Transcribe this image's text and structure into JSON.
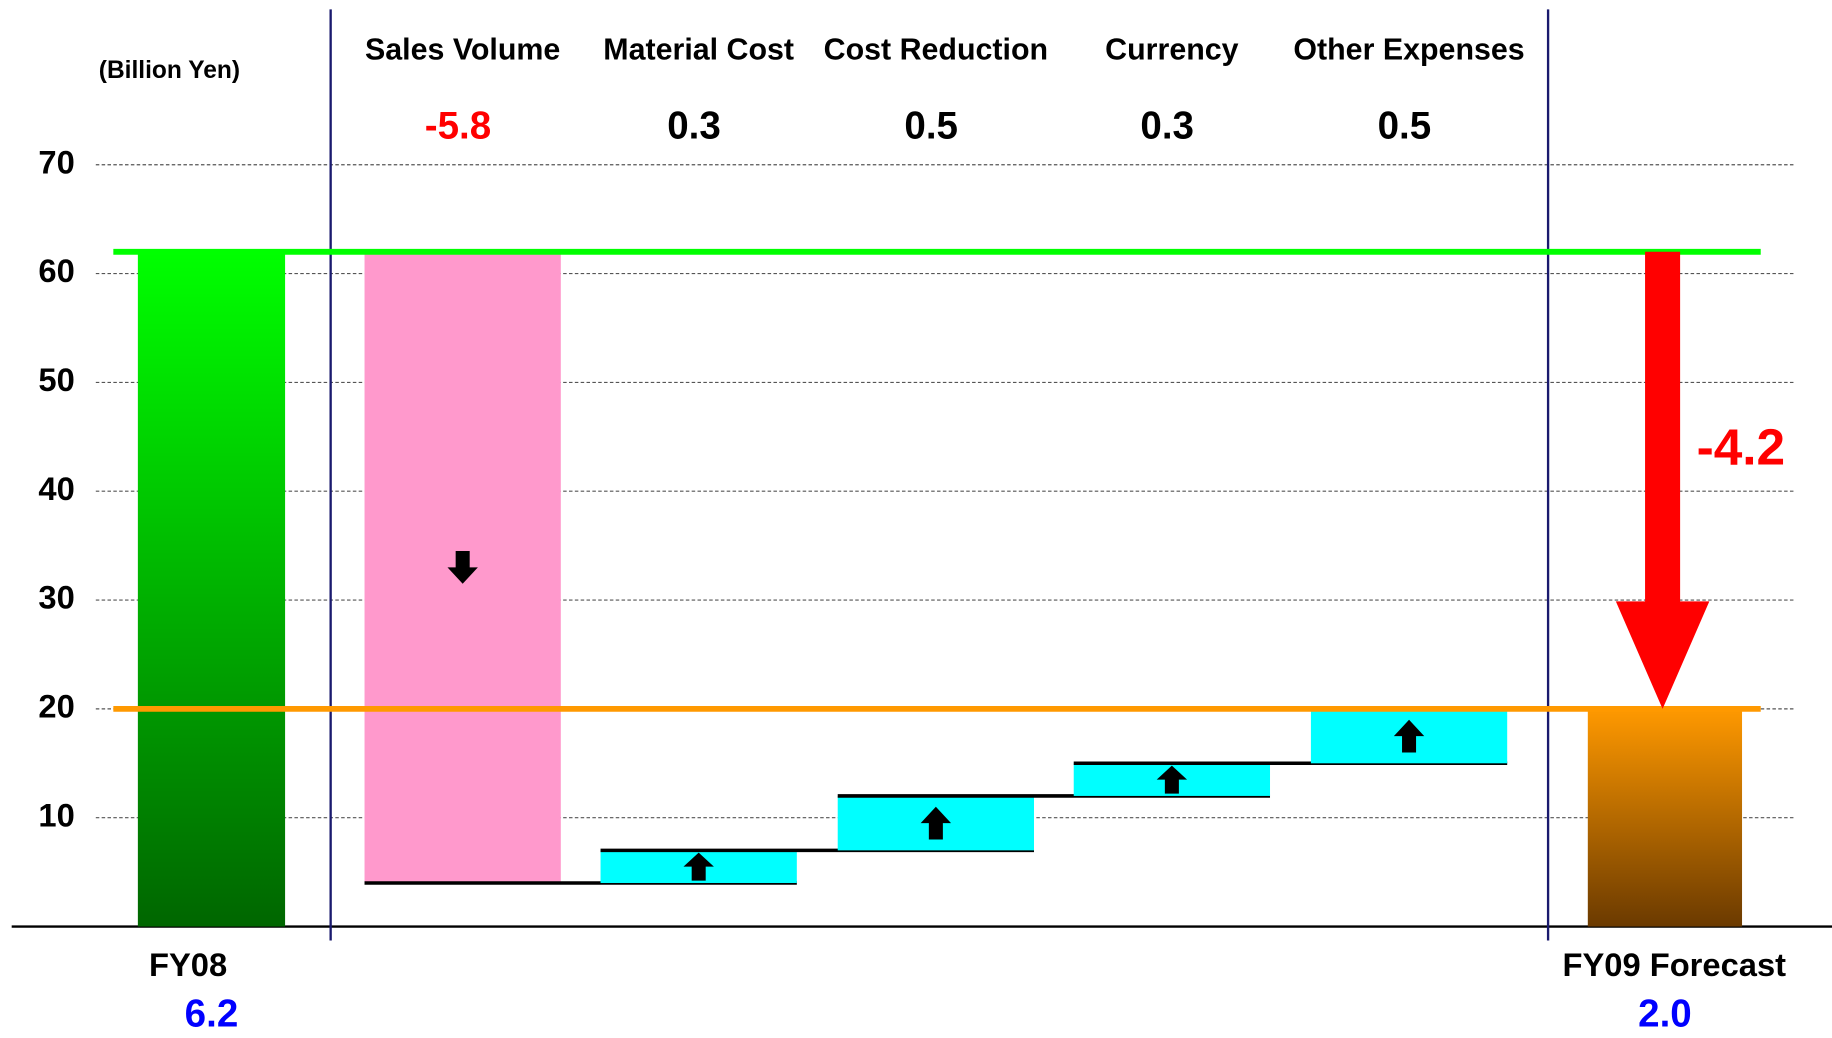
{
  "chart_data": {
    "type": "waterfall",
    "y_axis_label": "(Billion Yen)",
    "categories": [
      "FY08",
      "Sales Volume",
      "Material Cost",
      "Cost Reduction",
      "Currency",
      "Other Expenses",
      "FY09 Forecast"
    ],
    "values": [
      62,
      -58,
      3,
      5,
      3,
      5,
      20
    ],
    "value_labels": [
      "6.2",
      "-5.8",
      "0.3",
      "0.5",
      "0.3",
      "0.5",
      "2.0"
    ],
    "colors": [
      "#00ff00",
      "#ff99cc",
      "#00ffff",
      "#00ffff",
      "#00ffff",
      "#00ffff",
      "#ff9900"
    ],
    "annotation": {
      "value": -42,
      "label": "-4.2",
      "color": "#ff0000"
    },
    "ylim": [
      0,
      70
    ],
    "yticks": [
      10,
      20,
      30,
      40,
      50,
      60,
      70
    ],
    "grid": true
  }
}
